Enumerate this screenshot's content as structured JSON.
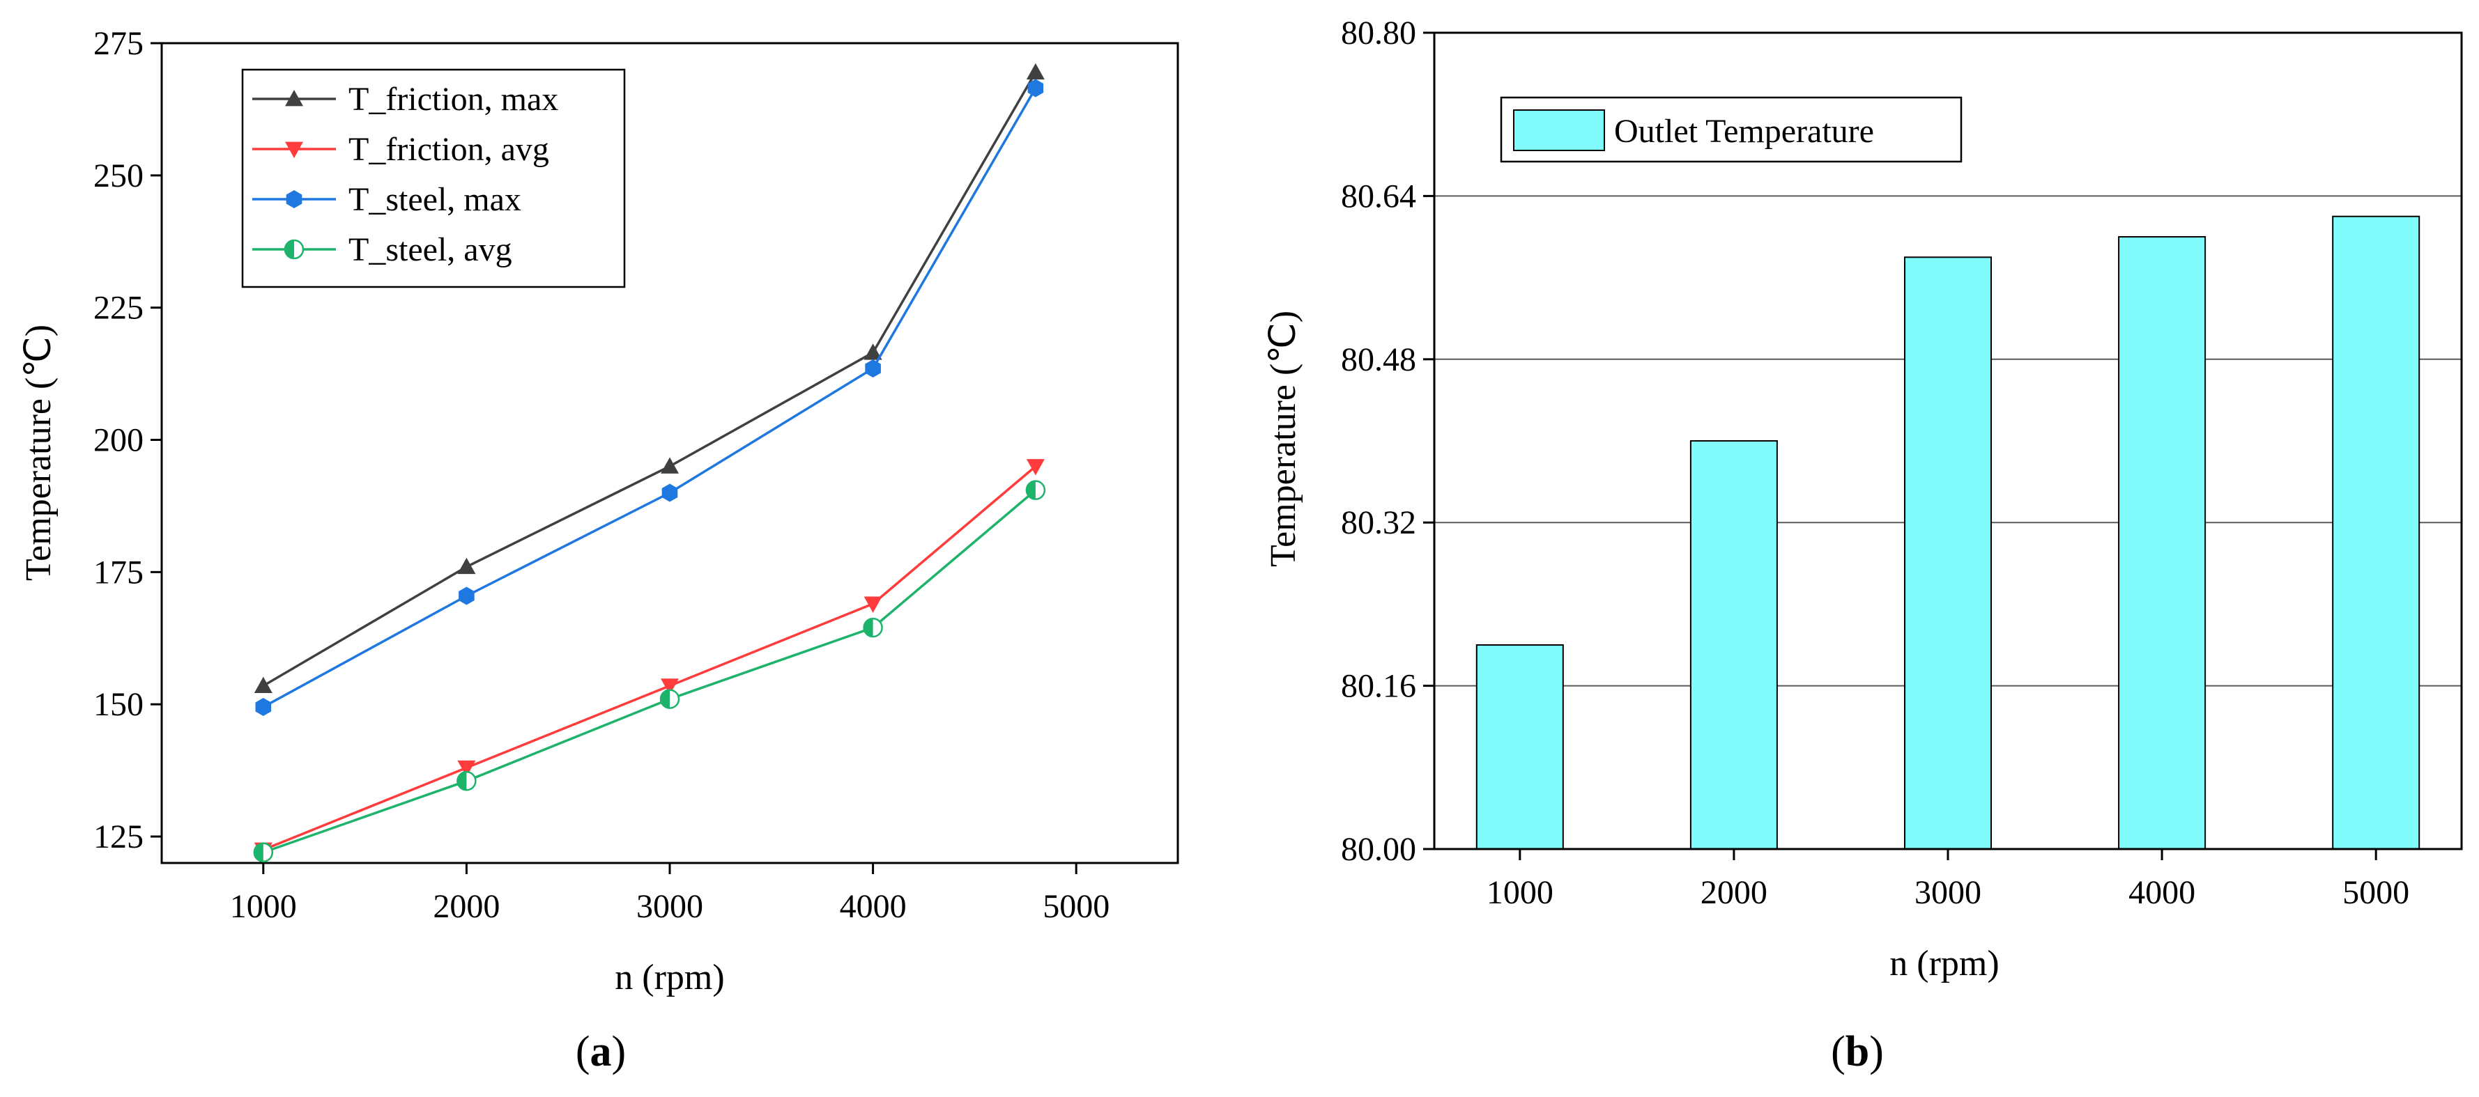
{
  "chart_data": [
    {
      "type": "line",
      "caption_letter": "a",
      "xlabel": "n (rpm)",
      "ylabel": "Temperature (℃)",
      "xlim": [
        500,
        5500
      ],
      "ylim": [
        120,
        275
      ],
      "xticks": [
        1000,
        2000,
        3000,
        4000,
        5000
      ],
      "yticks": [
        125,
        150,
        175,
        200,
        225,
        250,
        275
      ],
      "x": [
        1000,
        2000,
        3000,
        4000,
        4800
      ],
      "legend_position": "top-left",
      "series": [
        {
          "name": "T_friction, max",
          "color": "#404040",
          "marker": "triangle-up",
          "values": [
            153.5,
            176.0,
            195.0,
            216.5,
            269.5
          ]
        },
        {
          "name": "T_friction, avg",
          "color": "#ff3b3b",
          "marker": "triangle-down",
          "values": [
            122.5,
            138.0,
            153.5,
            169.0,
            195.0
          ]
        },
        {
          "name": "T_steel, max",
          "color": "#1f77e0",
          "marker": "hexagon",
          "values": [
            149.5,
            170.5,
            190.0,
            213.5,
            266.5
          ]
        },
        {
          "name": "T_steel, avg",
          "color": "#1db36b",
          "marker": "half-circle",
          "values": [
            122.0,
            135.5,
            151.0,
            164.5,
            190.5
          ]
        }
      ]
    },
    {
      "type": "bar",
      "caption_letter": "b",
      "xlabel": "n (rpm)",
      "ylabel": "Temperature (℃)",
      "ylim": [
        80.0,
        80.8
      ],
      "yticks": [
        "80.00",
        "80.16",
        "80.32",
        "80.48",
        "80.64",
        "80.80"
      ],
      "categories": [
        "1000",
        "2000",
        "3000",
        "4000",
        "5000"
      ],
      "series": [
        {
          "name": "Outlet Temperature",
          "color": "#80fcfc",
          "values": [
            80.2,
            80.4,
            80.58,
            80.6,
            80.62
          ]
        }
      ],
      "grid": true,
      "legend_position": "top-left"
    }
  ]
}
